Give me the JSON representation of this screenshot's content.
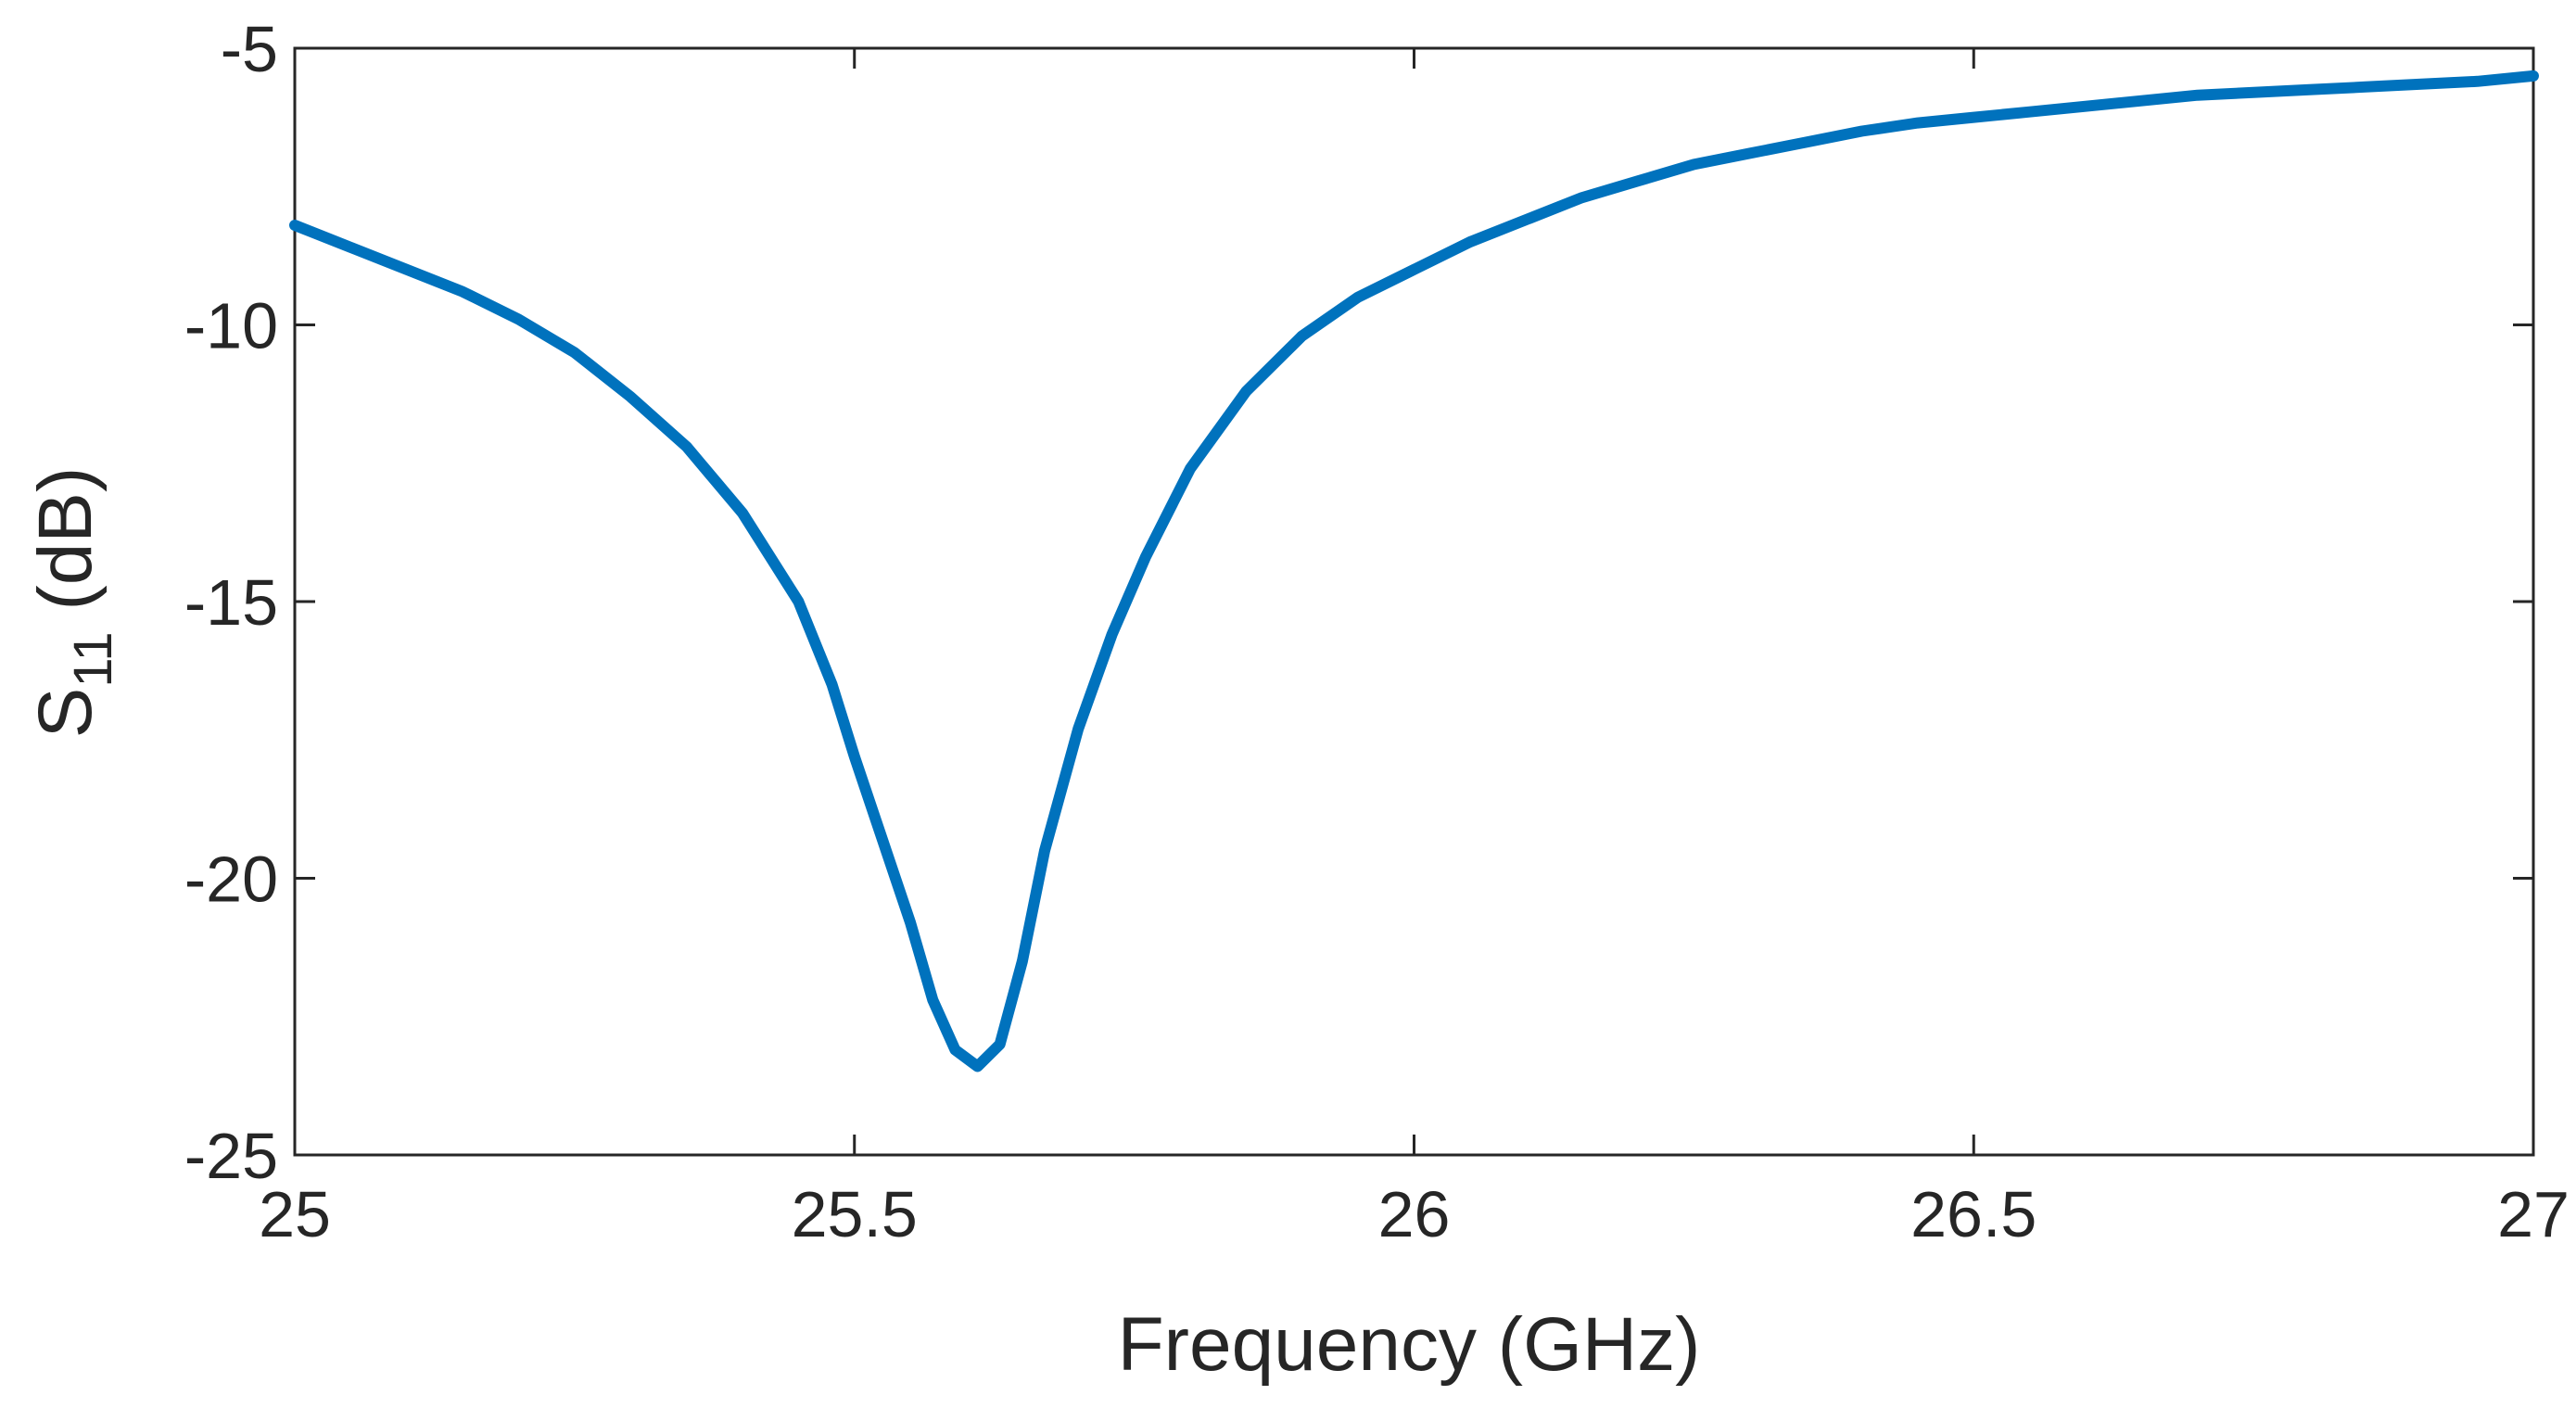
{
  "chart_data": {
    "type": "line",
    "title": "",
    "xlabel": "Frequency (GHz)",
    "ylabel": {
      "main": "S",
      "subscript": "11",
      "suffix": " (dB)"
    },
    "xlim": [
      25,
      27
    ],
    "ylim": [
      -25,
      -5
    ],
    "xticks": [
      25,
      25.5,
      26,
      26.5,
      27
    ],
    "xtick_labels": [
      "25",
      "25.5",
      "26",
      "26.5",
      "27"
    ],
    "yticks": [
      -5,
      -10,
      -15,
      -20,
      -25
    ],
    "ytick_labels": [
      "-5",
      "-10",
      "-15",
      "-20",
      "-25"
    ],
    "grid": false,
    "series": [
      {
        "name": "S11",
        "color": "#0072BD",
        "x": [
          25.0,
          25.05,
          25.1,
          25.15,
          25.2,
          25.25,
          25.3,
          25.35,
          25.4,
          25.45,
          25.48,
          25.5,
          25.52,
          25.55,
          25.57,
          25.59,
          25.61,
          25.63,
          25.65,
          25.67,
          25.7,
          25.73,
          25.76,
          25.8,
          25.85,
          25.9,
          25.95,
          26.0,
          26.05,
          26.1,
          26.15,
          26.2,
          26.25,
          26.3,
          26.35,
          26.4,
          26.45,
          26.5,
          26.55,
          26.6,
          26.65,
          26.7,
          26.75,
          26.8,
          26.85,
          26.9,
          26.95,
          27.0
        ],
        "y": [
          -8.2,
          -8.6,
          -9.0,
          -9.4,
          -9.9,
          -10.5,
          -11.3,
          -12.2,
          -13.4,
          -15.0,
          -16.5,
          -17.8,
          -19.0,
          -20.8,
          -22.2,
          -23.1,
          -23.4,
          -23.0,
          -21.5,
          -19.5,
          -17.3,
          -15.6,
          -14.2,
          -12.6,
          -11.2,
          -10.2,
          -9.5,
          -9.0,
          -8.5,
          -8.1,
          -7.7,
          -7.4,
          -7.1,
          -6.9,
          -6.7,
          -6.5,
          -6.35,
          -6.25,
          -6.15,
          -6.05,
          -5.95,
          -5.85,
          -5.8,
          -5.75,
          -5.7,
          -5.65,
          -5.6,
          -5.5
        ]
      }
    ]
  }
}
